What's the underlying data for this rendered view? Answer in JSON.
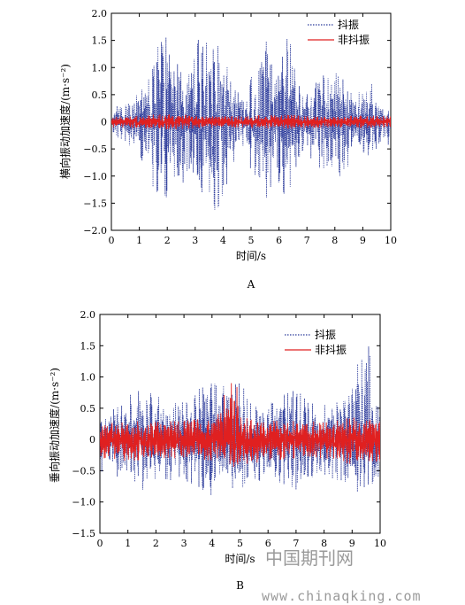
{
  "chart_data": [
    {
      "type": "line",
      "panel_label": "A",
      "xlabel": "时间/s",
      "ylabel": "横向振动加速度/(m·s⁻²)",
      "xlim": [
        0,
        10
      ],
      "ylim": [
        -2.0,
        2.0
      ],
      "x_ticks": [
        0,
        1,
        2,
        3,
        4,
        5,
        6,
        7,
        8,
        9,
        10
      ],
      "y_ticks": [
        -2.0,
        -1.5,
        -1.0,
        -0.5,
        0,
        0.5,
        1.0,
        1.5,
        2.0
      ],
      "y_tick_labels": [
        "−2.0",
        "−1.5",
        "−1.0",
        "−0.5",
        "0",
        "0.5",
        "1.0",
        "1.5",
        "2.0"
      ],
      "legend_position": "top-right",
      "grid": false,
      "series": [
        {
          "name": "抖振",
          "color": "#2b3a9a",
          "style": "dotted",
          "x": [
            0,
            0.25,
            0.5,
            0.75,
            1.0,
            1.25,
            1.5,
            1.75,
            2.0,
            2.25,
            2.5,
            2.75,
            3.0,
            3.25,
            3.5,
            3.75,
            4.0,
            4.25,
            4.5,
            4.75,
            5.0,
            5.25,
            5.5,
            5.75,
            6.0,
            6.25,
            6.5,
            6.75,
            7.0,
            7.25,
            7.5,
            7.75,
            8.0,
            8.25,
            8.5,
            8.75,
            9.0,
            9.25,
            9.5,
            9.75,
            10.0
          ],
          "max": [
            0.2,
            0.35,
            0.3,
            0.5,
            0.6,
            0.8,
            1.2,
            1.8,
            1.5,
            1.1,
            1.3,
            1.0,
            1.6,
            1.4,
            1.5,
            1.75,
            1.3,
            0.9,
            0.8,
            0.4,
            0.9,
            1.2,
            1.5,
            1.4,
            1.0,
            1.55,
            1.4,
            0.6,
            0.5,
            0.7,
            0.9,
            0.8,
            1.0,
            0.95,
            0.8,
            0.4,
            0.7,
            0.8,
            0.45,
            0.3,
            0.2
          ],
          "min": [
            -0.2,
            -0.3,
            -0.35,
            -0.5,
            -0.6,
            -0.9,
            -1.3,
            -1.65,
            -1.5,
            -1.2,
            -1.3,
            -1.1,
            -1.4,
            -1.3,
            -1.5,
            -1.65,
            -1.4,
            -1.0,
            -0.8,
            -0.4,
            -0.9,
            -1.2,
            -1.4,
            -1.5,
            -1.1,
            -1.6,
            -1.3,
            -0.6,
            -0.5,
            -0.8,
            -0.9,
            -0.8,
            -1.0,
            -1.0,
            -0.8,
            -0.4,
            -0.6,
            -0.8,
            -0.5,
            -0.3,
            -0.5
          ]
        },
        {
          "name": "非抖振",
          "color": "#e02020",
          "style": "solid",
          "x": [
            0,
            1,
            2,
            3,
            4,
            5,
            6,
            7,
            8,
            9,
            10
          ],
          "max": [
            0.1,
            0.12,
            0.15,
            0.12,
            0.1,
            0.12,
            0.13,
            0.12,
            0.1,
            0.12,
            0.1
          ],
          "min": [
            -0.1,
            -0.12,
            -0.15,
            -0.12,
            -0.1,
            -0.12,
            -0.13,
            -0.12,
            -0.1,
            -0.12,
            -0.1
          ]
        }
      ]
    },
    {
      "type": "line",
      "panel_label": "B",
      "xlabel": "时间/s",
      "ylabel": "垂向振动加速度/(m·s⁻²)",
      "xlim": [
        0,
        10
      ],
      "ylim": [
        -1.5,
        2.0
      ],
      "x_ticks": [
        0,
        1,
        2,
        3,
        4,
        5,
        6,
        7,
        8,
        9,
        10
      ],
      "y_ticks": [
        -1.5,
        -1.0,
        -0.5,
        0,
        0.5,
        1.0,
        1.5,
        2.0
      ],
      "y_tick_labels": [
        "−1.5",
        "−1.0",
        "−0.5",
        "0",
        "0.5",
        "1.0",
        "1.5",
        "2.0"
      ],
      "legend_position": "top-right",
      "grid": false,
      "series": [
        {
          "name": "抖振",
          "color": "#2b3a9a",
          "style": "dotted",
          "x": [
            0,
            0.5,
            1,
            1.5,
            2,
            2.5,
            3,
            3.5,
            4,
            4.5,
            5,
            5.5,
            6,
            6.5,
            7,
            7.5,
            8,
            8.5,
            9,
            9.5,
            10
          ],
          "max": [
            0.3,
            0.5,
            0.7,
            0.8,
            0.7,
            0.6,
            0.65,
            0.8,
            0.9,
            0.85,
            0.9,
            0.6,
            0.55,
            0.7,
            0.8,
            0.6,
            0.55,
            0.6,
            0.9,
            1.7,
            0.6
          ],
          "min": [
            -0.5,
            -0.6,
            -0.75,
            -0.85,
            -0.7,
            -0.65,
            -0.65,
            -0.75,
            -0.9,
            -0.85,
            -1.0,
            -0.7,
            -0.6,
            -0.7,
            -0.8,
            -0.6,
            -0.6,
            -0.65,
            -0.8,
            -0.9,
            -0.8
          ]
        },
        {
          "name": "非抖振",
          "color": "#e02020",
          "style": "solid",
          "x": [
            0,
            1,
            2,
            3,
            4,
            4.9,
            5,
            6,
            7,
            8,
            9,
            10
          ],
          "max": [
            0.25,
            0.3,
            0.28,
            0.3,
            0.35,
            1.1,
            0.35,
            0.3,
            0.3,
            0.28,
            0.35,
            0.3
          ],
          "min": [
            -0.3,
            -0.35,
            -0.3,
            -0.3,
            -0.35,
            -0.45,
            -0.4,
            -0.35,
            -0.3,
            -0.3,
            -0.4,
            -0.35
          ]
        }
      ]
    }
  ],
  "watermark": {
    "line1": "中国期刊网",
    "line2": "www.chinaqking.com"
  }
}
